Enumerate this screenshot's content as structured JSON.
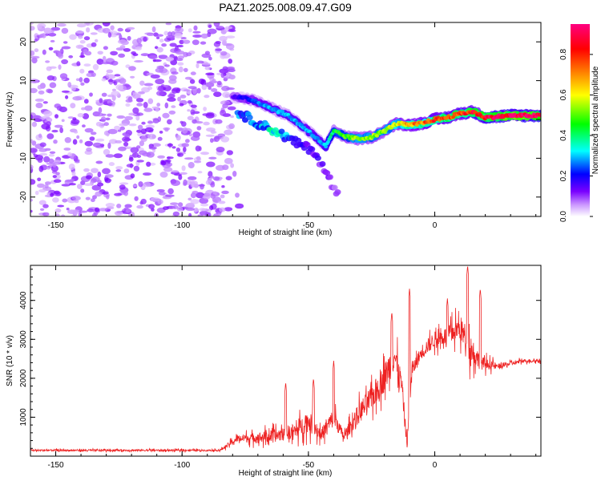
{
  "title": "PAZ1.2025.008.09.47.G09",
  "chart_data": [
    {
      "type": "heatmap",
      "xlabel": "Height of straight line (km)",
      "ylabel": "Frequency (Hz)",
      "xlim": [
        -160,
        42
      ],
      "ylim": [
        -25,
        25
      ],
      "xticks": [
        -150,
        -100,
        -50,
        0
      ],
      "yticks": [
        -20,
        -10,
        0,
        10,
        20
      ],
      "colorbar": {
        "label": "Normalized spectral amplitude",
        "range": [
          0.0,
          0.95
        ],
        "ticks": [
          "0.0",
          "0.2",
          "0.4",
          "0.6",
          "0.8"
        ],
        "colormap": [
          "#ffffff",
          "#cc99ff",
          "#7a00ff",
          "#0000ff",
          "#00ffff",
          "#00ff00",
          "#ffff00",
          "#ff7f00",
          "#ff0000",
          "#ff0080"
        ]
      },
      "noise_region": {
        "x_range": [
          -160,
          -80
        ],
        "y_range": [
          -25,
          25
        ],
        "amplitude": 0.1
      },
      "ridge": [
        {
          "x": -80,
          "y": 6,
          "amp": 0.15
        },
        {
          "x": -72,
          "y": 5,
          "amp": 0.25
        },
        {
          "x": -65,
          "y": 3,
          "amp": 0.3
        },
        {
          "x": -58,
          "y": 1,
          "amp": 0.3
        },
        {
          "x": -50,
          "y": -3,
          "amp": 0.3
        },
        {
          "x": -43,
          "y": -7,
          "amp": 0.3
        },
        {
          "x": -40,
          "y": -3,
          "amp": 0.45
        },
        {
          "x": -35,
          "y": -4.5,
          "amp": 0.5
        },
        {
          "x": -30,
          "y": -5,
          "amp": 0.55
        },
        {
          "x": -25,
          "y": -4.5,
          "amp": 0.55
        },
        {
          "x": -20,
          "y": -3,
          "amp": 0.55
        },
        {
          "x": -15,
          "y": -1,
          "amp": 0.6
        },
        {
          "x": -10,
          "y": -1.5,
          "amp": 0.7
        },
        {
          "x": -5,
          "y": -1,
          "amp": 0.75
        },
        {
          "x": 0,
          "y": 0,
          "amp": 0.8
        },
        {
          "x": 5,
          "y": 0.5,
          "amp": 0.8
        },
        {
          "x": 10,
          "y": 1.5,
          "amp": 0.8
        },
        {
          "x": 15,
          "y": 2,
          "amp": 0.85
        },
        {
          "x": 20,
          "y": 0.5,
          "amp": 0.9
        },
        {
          "x": 30,
          "y": 1,
          "amp": 0.95
        },
        {
          "x": 42,
          "y": 1,
          "amp": 0.95
        }
      ],
      "secondary_ridge": [
        {
          "x": -78,
          "y": 2,
          "amp": 0.25
        },
        {
          "x": -70,
          "y": -1,
          "amp": 0.3
        },
        {
          "x": -63,
          "y": -3,
          "amp": 0.35
        },
        {
          "x": -55,
          "y": -6,
          "amp": 0.2
        },
        {
          "x": -48,
          "y": -8,
          "amp": 0.15
        },
        {
          "x": -42,
          "y": -15,
          "amp": 0.12
        },
        {
          "x": -38,
          "y": -20,
          "amp": 0.1
        }
      ]
    },
    {
      "type": "line",
      "xlabel": "Height of straight line (km)",
      "ylabel": "SNR (10 * v/v)",
      "xlim": [
        -160,
        42
      ],
      "ylim": [
        0,
        4900
      ],
      "xticks": [
        -150,
        -100,
        -50,
        0
      ],
      "yticks": [
        1000,
        2000,
        3000,
        4000
      ],
      "series": [
        {
          "color": "#ee2222",
          "envelope": [
            {
              "x": -160,
              "y": 150,
              "amp": 50
            },
            {
              "x": -85,
              "y": 150,
              "amp": 50
            },
            {
              "x": -78,
              "y": 450,
              "amp": 200
            },
            {
              "x": -65,
              "y": 500,
              "amp": 350
            },
            {
              "x": -55,
              "y": 650,
              "amp": 450
            },
            {
              "x": -50,
              "y": 900,
              "amp": 600
            },
            {
              "x": -45,
              "y": 550,
              "amp": 350
            },
            {
              "x": -40,
              "y": 1000,
              "amp": 550
            },
            {
              "x": -36,
              "y": 500,
              "amp": 250
            },
            {
              "x": -30,
              "y": 1100,
              "amp": 600
            },
            {
              "x": -25,
              "y": 1500,
              "amp": 700
            },
            {
              "x": -20,
              "y": 2000,
              "amp": 800
            },
            {
              "x": -16,
              "y": 2600,
              "amp": 900
            },
            {
              "x": -13,
              "y": 1800,
              "amp": 600
            },
            {
              "x": -11,
              "y": 300,
              "amp": 250
            },
            {
              "x": -9,
              "y": 2200,
              "amp": 400
            },
            {
              "x": -5,
              "y": 2700,
              "amp": 400
            },
            {
              "x": 0,
              "y": 3000,
              "amp": 450
            },
            {
              "x": 5,
              "y": 3100,
              "amp": 500
            },
            {
              "x": 10,
              "y": 3300,
              "amp": 700
            },
            {
              "x": 14,
              "y": 2800,
              "amp": 900
            },
            {
              "x": 18,
              "y": 2400,
              "amp": 400
            },
            {
              "x": 25,
              "y": 2300,
              "amp": 150
            },
            {
              "x": 35,
              "y": 2450,
              "amp": 100
            },
            {
              "x": 42,
              "y": 2450,
              "amp": 100
            }
          ],
          "spikes": [
            {
              "x": -59,
              "y": 1900
            },
            {
              "x": -48,
              "y": 2000
            },
            {
              "x": -40,
              "y": 2450
            },
            {
              "x": -17,
              "y": 3700
            },
            {
              "x": -10,
              "y": 4300
            },
            {
              "x": 5,
              "y": 4050
            },
            {
              "x": 13,
              "y": 4900
            },
            {
              "x": 18,
              "y": 4300
            }
          ]
        }
      ]
    }
  ]
}
